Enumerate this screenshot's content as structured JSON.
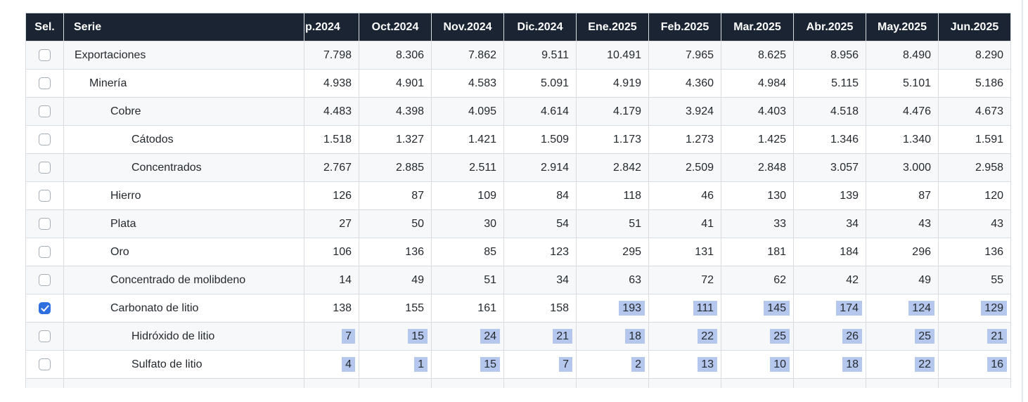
{
  "table": {
    "sel_header": "Sel.",
    "serie_header": "Serie",
    "month_headers": [
      "p.2024",
      "Oct.2024",
      "Nov.2024",
      "Dic.2024",
      "Ene.2025",
      "Feb.2025",
      "Mar.2025",
      "Abr.2025",
      "May.2025",
      "Jun.2025"
    ],
    "rows": [
      {
        "label": "Exportaciones",
        "level": 0,
        "checked": false,
        "highlight_from": null,
        "values": [
          "7.798",
          "8.306",
          "7.862",
          "9.511",
          "10.491",
          "7.965",
          "8.625",
          "8.956",
          "8.490",
          "8.290"
        ]
      },
      {
        "label": "Minería",
        "level": 1,
        "checked": false,
        "highlight_from": null,
        "values": [
          "4.938",
          "4.901",
          "4.583",
          "5.091",
          "4.919",
          "4.360",
          "4.984",
          "5.115",
          "5.101",
          "5.186"
        ]
      },
      {
        "label": "Cobre",
        "level": 2,
        "checked": false,
        "highlight_from": null,
        "values": [
          "4.483",
          "4.398",
          "4.095",
          "4.614",
          "4.179",
          "3.924",
          "4.403",
          "4.518",
          "4.476",
          "4.673"
        ]
      },
      {
        "label": "Cátodos",
        "level": 3,
        "checked": false,
        "highlight_from": null,
        "values": [
          "1.518",
          "1.327",
          "1.421",
          "1.509",
          "1.173",
          "1.273",
          "1.425",
          "1.346",
          "1.340",
          "1.591"
        ]
      },
      {
        "label": "Concentrados",
        "level": 3,
        "checked": false,
        "highlight_from": null,
        "values": [
          "2.767",
          "2.885",
          "2.511",
          "2.914",
          "2.842",
          "2.509",
          "2.848",
          "3.057",
          "3.000",
          "2.958"
        ]
      },
      {
        "label": "Hierro",
        "level": 2,
        "checked": false,
        "highlight_from": null,
        "values": [
          "126",
          "87",
          "109",
          "84",
          "118",
          "46",
          "130",
          "139",
          "87",
          "120"
        ]
      },
      {
        "label": "Plata",
        "level": 2,
        "checked": false,
        "highlight_from": null,
        "values": [
          "27",
          "50",
          "30",
          "54",
          "51",
          "41",
          "33",
          "34",
          "43",
          "43"
        ]
      },
      {
        "label": "Oro",
        "level": 2,
        "checked": false,
        "highlight_from": null,
        "values": [
          "106",
          "136",
          "85",
          "123",
          "295",
          "131",
          "181",
          "184",
          "296",
          "136"
        ]
      },
      {
        "label": "Concentrado de molibdeno",
        "level": 2,
        "checked": false,
        "highlight_from": null,
        "values": [
          "14",
          "49",
          "51",
          "34",
          "63",
          "72",
          "62",
          "42",
          "49",
          "55"
        ]
      },
      {
        "label": "Carbonato de litio",
        "level": 2,
        "checked": true,
        "highlight_from": 4,
        "values": [
          "138",
          "155",
          "161",
          "158",
          "193",
          "111",
          "145",
          "174",
          "124",
          "129"
        ]
      },
      {
        "label": "Hidróxido de litio",
        "level": 3,
        "checked": false,
        "highlight_from": 0,
        "values": [
          "7",
          "15",
          "24",
          "21",
          "18",
          "22",
          "25",
          "26",
          "25",
          "21"
        ]
      },
      {
        "label": "Sulfato de litio",
        "level": 3,
        "checked": false,
        "highlight_from": 0,
        "values": [
          "4",
          "1",
          "15",
          "7",
          "2",
          "13",
          "10",
          "18",
          "22",
          "16"
        ]
      }
    ]
  },
  "colors": {
    "header_bg": "#1b2433",
    "header_text": "#ffffff",
    "row_stripe": "#f7f8f9",
    "border": "#d9dde2",
    "text": "#24292e",
    "checkbox_checked": "#2f6fe0",
    "selection_highlight": "#b5c7ed"
  }
}
